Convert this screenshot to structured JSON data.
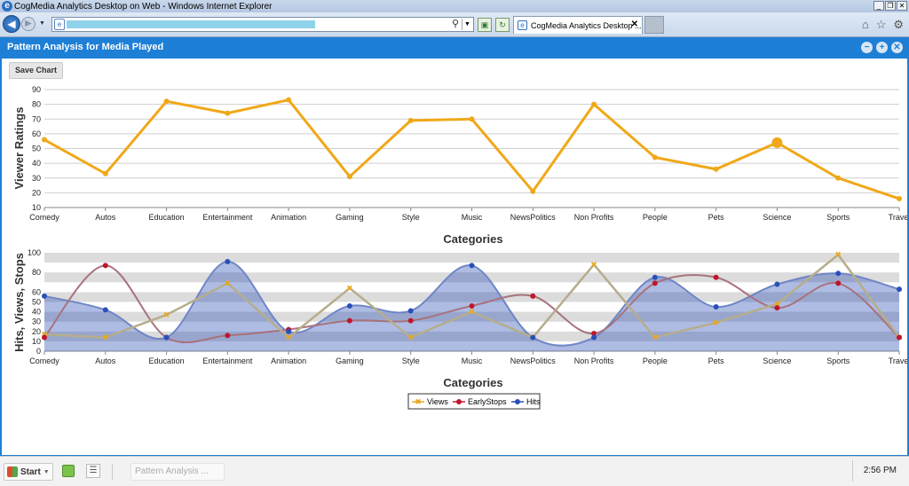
{
  "browser": {
    "window_title": "CogMedia Analytics Desktop on Web - Windows Internet Explorer",
    "tab_label": "CogMedia Analytics Desktop ..."
  },
  "app": {
    "title": "Pattern Analysis for Media Played",
    "save_label": "Save Chart"
  },
  "chart_data": [
    {
      "type": "line",
      "categories": [
        "Comedy",
        "Autos",
        "Education",
        "Entertainment",
        "Animation",
        "Gaming",
        "Style",
        "Music",
        "NewsPolitics",
        "Non Profits",
        "People",
        "Pets",
        "Science",
        "Sports",
        "Travel"
      ],
      "series": [
        {
          "values": [
            56,
            33,
            82,
            74,
            83,
            31,
            69,
            70,
            21,
            80,
            44,
            36,
            54,
            30,
            16
          ],
          "color": "#f0a818"
        }
      ],
      "highlight_index": 12,
      "xlabel": "Categories",
      "ylabel": "Viewer Ratings",
      "ylim": [
        10,
        90
      ],
      "yticks": [
        10,
        20,
        30,
        40,
        50,
        60,
        70,
        80,
        90
      ],
      "grid": true
    },
    {
      "type": "line",
      "categories": [
        "Comedy",
        "Autos",
        "Education",
        "Entertainment",
        "Animation",
        "Gaming",
        "Style",
        "Music",
        "NewsPolitics",
        "Non Profits",
        "People",
        "Pets",
        "Science",
        "Sports",
        "Travel"
      ],
      "series": [
        {
          "name": "Views",
          "values": [
            17,
            14,
            37,
            69,
            14,
            64,
            14,
            40,
            14,
            88,
            14,
            29,
            48,
            98,
            14
          ],
          "color": "#e8a820"
        },
        {
          "name": "EarlyStops",
          "values": [
            14,
            87,
            14,
            16,
            22,
            31,
            31,
            46,
            56,
            18,
            69,
            75,
            44,
            69,
            14
          ],
          "color": "#c0162b"
        },
        {
          "name": "Hits",
          "values": [
            56,
            42,
            14,
            91,
            20,
            46,
            41,
            87,
            14,
            14,
            75,
            45,
            68,
            79,
            63
          ],
          "color": "#2a4fb8"
        }
      ],
      "xlabel": "Categories",
      "ylabel": "Hits, Views, Stops",
      "ylim": [
        0,
        100
      ],
      "yticks": [
        0,
        10,
        20,
        30,
        40,
        50,
        60,
        80,
        100
      ],
      "legend": "bottom-center"
    }
  ],
  "taskbar": {
    "start_label": "Start",
    "task_label": "Pattern Analysis ...",
    "clock": "2:56 PM"
  }
}
